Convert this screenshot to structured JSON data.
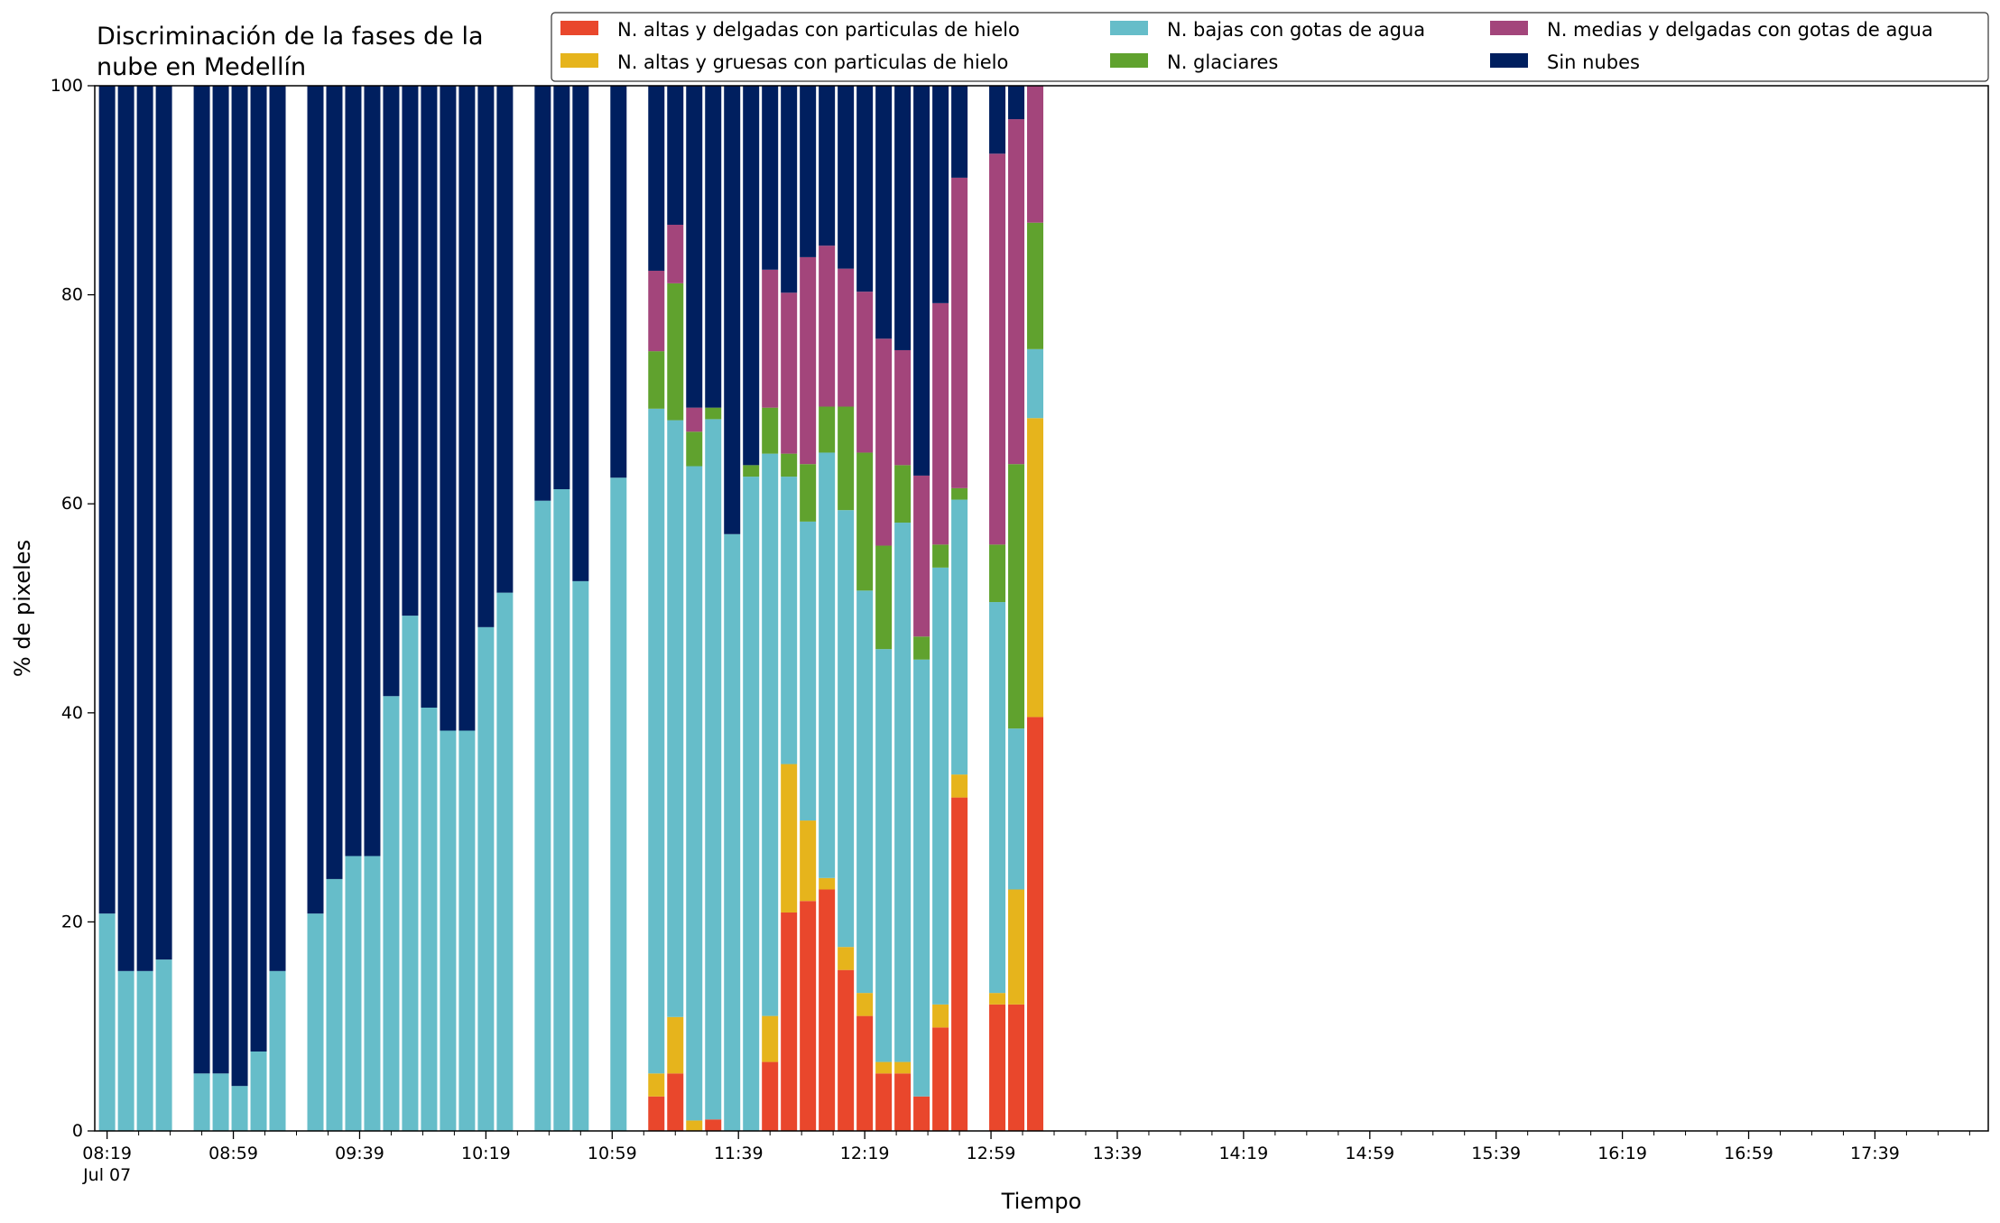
{
  "chart_data": {
    "type": "bar",
    "stacked": true,
    "title_lines": [
      "Discriminación de la fases de la",
      "nube en Medellín"
    ],
    "xlabel": "Tiempo",
    "ylabel": "% de pixeles",
    "ylim": [
      0,
      100
    ],
    "yticks": [
      0,
      20,
      40,
      60,
      80,
      100
    ],
    "grid": false,
    "legend_position": "top-right",
    "x_start_time": "08:19",
    "x_end_time": "18:11",
    "x_tick_labels": [
      {
        "time": "08:19",
        "label": "08:19",
        "sublabel": "Jul 07"
      },
      {
        "time": "08:59",
        "label": "08:59",
        "sublabel": ""
      },
      {
        "time": "09:39",
        "label": "09:39",
        "sublabel": ""
      },
      {
        "time": "10:19",
        "label": "10:19",
        "sublabel": ""
      },
      {
        "time": "10:59",
        "label": "10:59",
        "sublabel": ""
      },
      {
        "time": "11:39",
        "label": "11:39",
        "sublabel": ""
      },
      {
        "time": "12:19",
        "label": "12:19",
        "sublabel": ""
      },
      {
        "time": "12:59",
        "label": "12:59",
        "sublabel": ""
      },
      {
        "time": "13:39",
        "label": "13:39",
        "sublabel": ""
      },
      {
        "time": "14:19",
        "label": "14:19",
        "sublabel": ""
      },
      {
        "time": "14:59",
        "label": "14:59",
        "sublabel": ""
      },
      {
        "time": "15:39",
        "label": "15:39",
        "sublabel": ""
      },
      {
        "time": "16:19",
        "label": "16:19",
        "sublabel": ""
      },
      {
        "time": "16:59",
        "label": "16:59",
        "sublabel": ""
      },
      {
        "time": "17:39",
        "label": "17:39",
        "sublabel": ""
      }
    ],
    "x_minor_tick_times": [
      "08:29",
      "08:39",
      "08:49",
      "09:09",
      "09:19",
      "09:29",
      "09:49",
      "09:59",
      "10:09",
      "10:29",
      "10:39",
      "10:49",
      "11:09",
      "11:19",
      "11:29",
      "11:49",
      "11:59",
      "12:09",
      "12:29",
      "12:39",
      "12:49",
      "13:09",
      "13:19",
      "13:29",
      "13:49",
      "13:59",
      "14:09",
      "14:29",
      "14:39",
      "14:49",
      "15:09",
      "15:19",
      "15:29",
      "15:49",
      "15:59",
      "16:09",
      "16:29",
      "16:39",
      "16:49",
      "17:09",
      "17:19",
      "17:29",
      "17:49",
      "17:59",
      "18:09"
    ],
    "series": [
      {
        "name": "N. altas y delgadas con particulas de hielo",
        "color": "#e9472c"
      },
      {
        "name": "N. altas y gruesas con particulas de hielo",
        "color": "#e6b41c"
      },
      {
        "name": "N. bajas con gotas de agua",
        "color": "#66bdc9"
      },
      {
        "name": "N. glaciares",
        "color": "#60a22e"
      },
      {
        "name": "N. medias y delgadas con gotas de agua",
        "color": "#a3457b"
      },
      {
        "name": "Sin nubes",
        "color": "#001f5f"
      }
    ],
    "bars": [
      {
        "time": "08:19",
        "values": [
          0,
          0,
          20.8,
          0,
          0,
          79.2
        ]
      },
      {
        "time": "08:25",
        "values": [
          0,
          0,
          15.3,
          0,
          0,
          84.7
        ]
      },
      {
        "time": "08:31",
        "values": [
          0,
          0,
          15.3,
          0,
          0,
          84.7
        ]
      },
      {
        "time": "08:37",
        "values": [
          0,
          0,
          16.4,
          0,
          0,
          83.6
        ]
      },
      {
        "time": "08:49",
        "values": [
          0,
          0,
          5.5,
          0,
          0,
          94.5
        ]
      },
      {
        "time": "08:55",
        "values": [
          0,
          0,
          5.5,
          0,
          0,
          94.5
        ]
      },
      {
        "time": "09:01",
        "values": [
          0,
          0,
          4.3,
          0,
          0,
          95.7
        ]
      },
      {
        "time": "09:07",
        "values": [
          0,
          0,
          7.6,
          0,
          0,
          92.4
        ]
      },
      {
        "time": "09:13",
        "values": [
          0,
          0,
          15.3,
          0,
          0,
          84.7
        ]
      },
      {
        "time": "09:25",
        "values": [
          0,
          0,
          20.8,
          0,
          0,
          79.2
        ]
      },
      {
        "time": "09:31",
        "values": [
          0,
          0,
          24.1,
          0,
          0,
          75.9
        ]
      },
      {
        "time": "09:37",
        "values": [
          0,
          0,
          26.3,
          0,
          0,
          73.7
        ]
      },
      {
        "time": "09:43",
        "values": [
          0,
          0,
          26.3,
          0,
          0,
          73.7
        ]
      },
      {
        "time": "09:49",
        "values": [
          0,
          0,
          41.6,
          0,
          0,
          58.4
        ]
      },
      {
        "time": "09:55",
        "values": [
          0,
          0,
          49.3,
          0,
          0,
          50.7
        ]
      },
      {
        "time": "10:01",
        "values": [
          0,
          0,
          40.5,
          0,
          0,
          59.5
        ]
      },
      {
        "time": "10:07",
        "values": [
          0,
          0,
          38.3,
          0,
          0,
          61.7
        ]
      },
      {
        "time": "10:13",
        "values": [
          0,
          0,
          38.3,
          0,
          0,
          61.7
        ]
      },
      {
        "time": "10:19",
        "values": [
          0,
          0,
          48.2,
          0,
          0,
          51.8
        ]
      },
      {
        "time": "10:25",
        "values": [
          0,
          0,
          51.5,
          0,
          0,
          48.5
        ]
      },
      {
        "time": "10:37",
        "values": [
          0,
          0,
          60.3,
          0,
          0,
          39.7
        ]
      },
      {
        "time": "10:43",
        "values": [
          0,
          0,
          61.4,
          0,
          0,
          38.6
        ]
      },
      {
        "time": "10:49",
        "values": [
          0,
          0,
          52.6,
          0,
          0,
          47.4
        ]
      },
      {
        "time": "11:01",
        "values": [
          0,
          0,
          62.5,
          0,
          0,
          37.5
        ]
      },
      {
        "time": "11:13",
        "values": [
          3.3,
          2.2,
          63.6,
          5.5,
          7.7,
          17.7
        ]
      },
      {
        "time": "11:19",
        "values": [
          5.5,
          5.4,
          57.1,
          13.1,
          5.6,
          13.3
        ]
      },
      {
        "time": "11:25",
        "values": [
          0,
          1.0,
          62.6,
          3.3,
          2.3,
          30.8
        ]
      },
      {
        "time": "11:31",
        "values": [
          1.1,
          0,
          67.0,
          1.1,
          0,
          30.8
        ]
      },
      {
        "time": "11:37",
        "values": [
          0,
          0,
          57.1,
          0,
          0,
          42.9
        ]
      },
      {
        "time": "11:43",
        "values": [
          0,
          0,
          62.6,
          1.1,
          0,
          36.3
        ]
      },
      {
        "time": "11:49",
        "values": [
          6.6,
          4.4,
          53.8,
          4.4,
          13.2,
          17.6
        ]
      },
      {
        "time": "11:55",
        "values": [
          20.9,
          14.2,
          27.5,
          2.2,
          15.4,
          19.8
        ]
      },
      {
        "time": "12:01",
        "values": [
          22.0,
          7.7,
          28.6,
          5.5,
          19.8,
          16.4
        ]
      },
      {
        "time": "12:07",
        "values": [
          23.1,
          1.1,
          40.7,
          4.4,
          15.4,
          15.3
        ]
      },
      {
        "time": "12:13",
        "values": [
          15.4,
          2.2,
          41.8,
          9.9,
          13.2,
          17.5
        ]
      },
      {
        "time": "12:19",
        "values": [
          11.0,
          2.2,
          38.5,
          13.2,
          15.4,
          19.7
        ]
      },
      {
        "time": "12:25",
        "values": [
          5.5,
          1.1,
          39.5,
          9.9,
          19.8,
          24.2
        ]
      },
      {
        "time": "12:31",
        "values": [
          5.5,
          1.1,
          51.6,
          5.5,
          11.0,
          25.3
        ]
      },
      {
        "time": "12:37",
        "values": [
          3.3,
          0,
          41.8,
          2.2,
          15.4,
          37.3
        ]
      },
      {
        "time": "12:43",
        "values": [
          9.9,
          2.2,
          41.8,
          2.2,
          23.1,
          20.8
        ]
      },
      {
        "time": "12:49",
        "values": [
          31.9,
          2.2,
          26.3,
          1.1,
          29.7,
          8.8
        ]
      },
      {
        "time": "13:01",
        "values": [
          12.1,
          1.1,
          37.4,
          5.5,
          37.4,
          6.5
        ]
      },
      {
        "time": "13:07",
        "values": [
          12.1,
          11.0,
          15.4,
          25.3,
          33.0,
          3.2
        ]
      },
      {
        "time": "13:13",
        "values": [
          39.6,
          28.6,
          6.6,
          12.1,
          13.1,
          0
        ]
      }
    ]
  }
}
